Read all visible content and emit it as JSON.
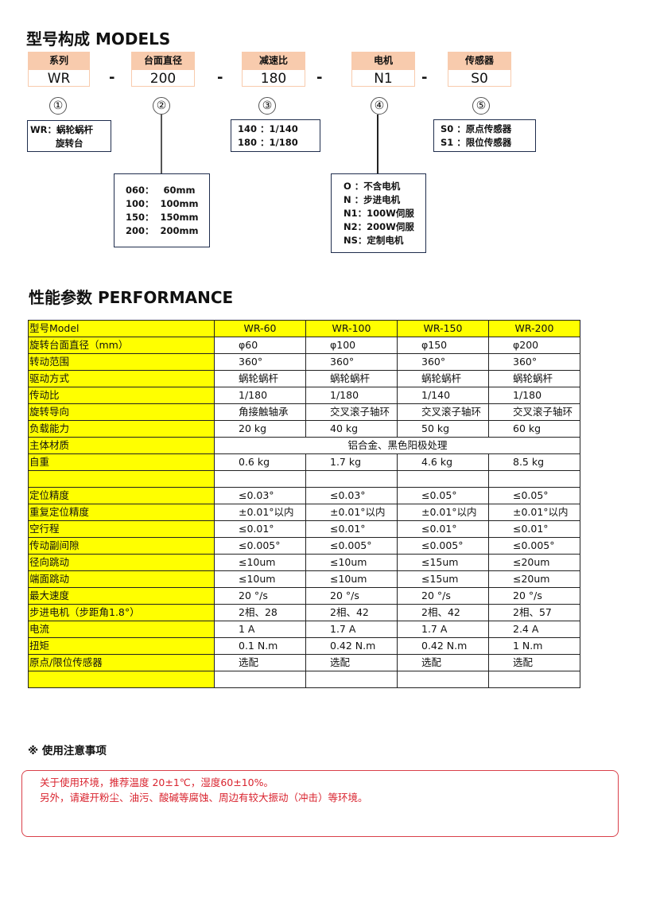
{
  "models": {
    "title": "型号构成  MODELS",
    "fields": [
      {
        "label": "系列",
        "value": "WR",
        "num": "①"
      },
      {
        "label": "台面直径",
        "value": "200",
        "num": "②"
      },
      {
        "label": "减速比",
        "value": "180",
        "num": "③"
      },
      {
        "label": "电机",
        "value": "N1",
        "num": "④"
      },
      {
        "label": "传感器",
        "value": "S0",
        "num": "⑤"
      }
    ],
    "separator": "-",
    "series_desc": [
      "WR：蜗轮蜗杆",
      "旋转台"
    ],
    "diameter_desc": [
      "060：   60mm",
      "100：  100mm",
      "150：  150mm",
      "200：  200mm"
    ],
    "ratio_desc": [
      "140 ：1/140",
      "180 ：1/180"
    ],
    "motor_desc": [
      "O ：不含电机",
      "N ：步进电机",
      "N1：100W伺服",
      "N2：200W伺服",
      "NS：定制电机"
    ],
    "sensor_desc": [
      "S0 ：原点传感器",
      "S1 ：限位传感器"
    ]
  },
  "performance": {
    "title": "性能参数  PERFORMANCE",
    "header": [
      "型号Model",
      "WR-60",
      "WR-100",
      "WR-150",
      "WR-200"
    ],
    "rows": [
      [
        "旋转台面直径（mm）",
        "φ60",
        "φ100",
        "φ150",
        "φ200"
      ],
      [
        "转动范围",
        "360°",
        "360°",
        "360°",
        "360°"
      ],
      [
        "驱动方式",
        "蜗轮蜗杆",
        "蜗轮蜗杆",
        "蜗轮蜗杆",
        "蜗轮蜗杆"
      ],
      [
        "传动比",
        "1/180",
        "1/180",
        "1/140",
        "1/180"
      ],
      [
        "旋转导向",
        "角接触轴承",
        "交叉滚子轴环",
        "交叉滚子轴环",
        "交叉滚子轴环"
      ],
      [
        "负载能力",
        "20 kg",
        "40 kg",
        "50 kg",
        "60 kg"
      ],
      [
        "主体材质",
        "铝合金、黑色阳极处理"
      ],
      [
        "自重",
        "0.6 kg",
        "1.7 kg",
        "4.6 kg",
        "8.5 kg"
      ],
      [
        "",
        "",
        "",
        "",
        ""
      ],
      [
        "定位精度",
        "≤0.03°",
        "≤0.03°",
        "≤0.05°",
        "≤0.05°"
      ],
      [
        "重复定位精度",
        "±0.01°以内",
        "±0.01°以内",
        "±0.01°以内",
        "±0.01°以内"
      ],
      [
        "空行程",
        "≤0.01°",
        "≤0.01°",
        "≤0.01°",
        "≤0.01°"
      ],
      [
        "传动副间隙",
        "≤0.005°",
        "≤0.005°",
        "≤0.005°",
        "≤0.005°"
      ],
      [
        "径向跳动",
        "≤10um",
        "≤10um",
        "≤15um",
        "≤20um"
      ],
      [
        "端面跳动",
        "≤10um",
        "≤10um",
        "≤15um",
        "≤20um"
      ],
      [
        "最大速度",
        "20 °/s",
        "20 °/s",
        "20 °/s",
        "20 °/s"
      ],
      [
        "步进电机（步距角1.8°）",
        "2相、28",
        "2相、42",
        "2相、42",
        "2相、57"
      ],
      [
        "电流",
        "1 A",
        "1.7 A",
        "1.7 A",
        "2.4 A"
      ],
      [
        "扭矩",
        "0.1 N.m",
        "0.42 N.m",
        "0.42 N.m",
        "1 N.m"
      ],
      [
        "原点/限位传感器",
        "选配",
        "选配",
        "选配",
        "选配"
      ],
      [
        "",
        "",
        "",
        "",
        ""
      ]
    ]
  },
  "notes": {
    "title": "※ 使用注意事项",
    "lines": [
      "关于使用环境，推荐温度 20±1℃，湿度60±10%。",
      "另外，请避开粉尘、油污、酸碱等腐蚀、周边有较大振动（冲击）等环境。"
    ]
  },
  "colors": {
    "label_bg": "#ffff00",
    "field_header_bg": "#f8cbad",
    "note_text": "#d9232e",
    "note_border": "#d9404a"
  }
}
